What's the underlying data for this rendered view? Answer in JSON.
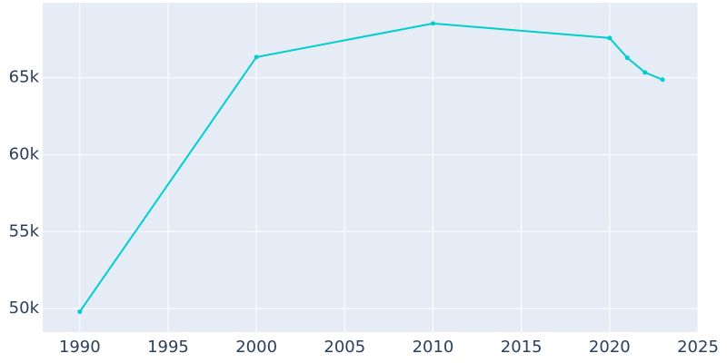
{
  "chart_data": {
    "type": "line",
    "x": [
      1990,
      2000,
      2010,
      2020,
      2021,
      2022,
      2023
    ],
    "series": [
      {
        "color": "#00cdd0",
        "values": [
          49800,
          66350,
          68530,
          67590,
          66300,
          65350,
          64880
        ]
      }
    ],
    "xlim": [
      1987.9,
      2025
    ],
    "ylim": [
      48470,
      69880
    ],
    "xticks": [
      1990,
      1995,
      2000,
      2005,
      2010,
      2015,
      2020,
      2025
    ],
    "yticks": [
      {
        "value": 50000,
        "label": "50k"
      },
      {
        "value": 55000,
        "label": "55k"
      },
      {
        "value": 60000,
        "label": "60k"
      },
      {
        "value": 65000,
        "label": "65k"
      }
    ],
    "grid": true
  }
}
